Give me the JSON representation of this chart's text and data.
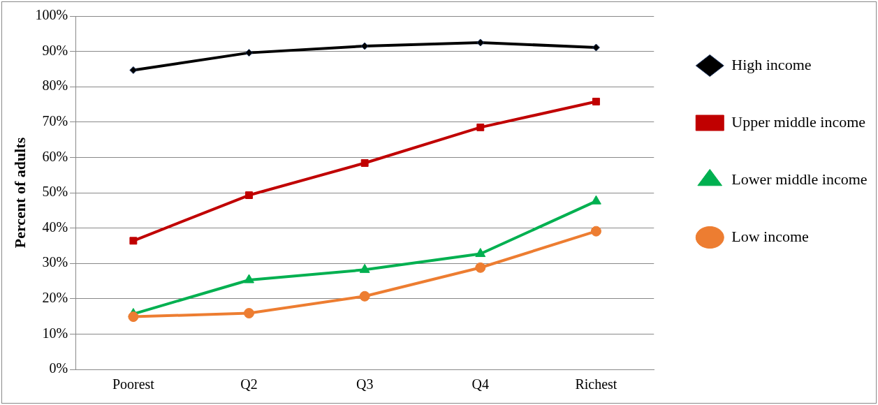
{
  "chart_data": {
    "type": "line",
    "ylabel": "Percent of adults",
    "categories": [
      "Poorest",
      "Q2",
      "Q3",
      "Q4",
      "Richest"
    ],
    "series": [
      {
        "name": "High income",
        "color": "#000000",
        "marker": "diamond",
        "values": [
          84.7,
          89.6,
          91.5,
          92.5,
          91.1
        ]
      },
      {
        "name": "Upper middle income",
        "color": "#c00000",
        "marker": "square",
        "values": [
          36.4,
          49.3,
          58.4,
          68.5,
          75.8
        ]
      },
      {
        "name": "Lower middle income",
        "color": "#00b050",
        "marker": "triangle",
        "values": [
          15.7,
          25.3,
          28.2,
          32.7,
          47.6
        ]
      },
      {
        "name": "Low income",
        "color": "#ed7d31",
        "marker": "circle",
        "values": [
          14.9,
          15.9,
          20.7,
          28.8,
          39.1
        ]
      }
    ],
    "ylim": [
      0,
      100
    ],
    "yticks": [
      {
        "value": 0,
        "label": "0%"
      },
      {
        "value": 10,
        "label": "10%"
      },
      {
        "value": 20,
        "label": "20%"
      },
      {
        "value": 30,
        "label": "30%"
      },
      {
        "value": 40,
        "label": "40%"
      },
      {
        "value": 50,
        "label": "50%"
      },
      {
        "value": 60,
        "label": "60%"
      },
      {
        "value": 70,
        "label": "70%"
      },
      {
        "value": 80,
        "label": "80%"
      },
      {
        "value": 90,
        "label": "90%"
      },
      {
        "value": 100,
        "label": "100%"
      }
    ],
    "grid": "y",
    "legend": "right"
  }
}
